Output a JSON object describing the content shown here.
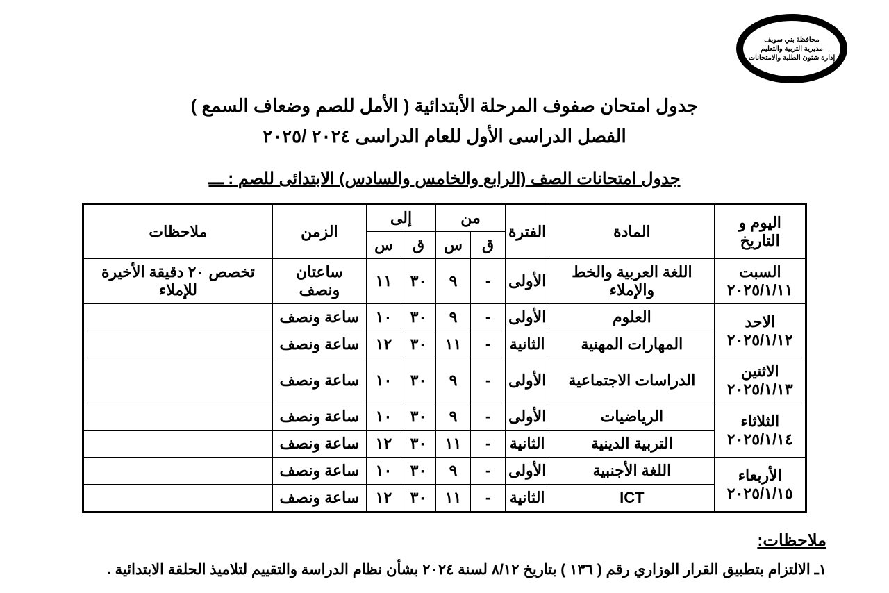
{
  "logo": {
    "line1": "محافظة بني سويف",
    "line2": "مديرية التربية والتعليم",
    "line3": "إدارة شئون الطلبة والامتحانات"
  },
  "title": {
    "line1": "جدول امتحان صفوف المرحلة الأبتدائية ( الأمل للصم وضعاف السمع )",
    "line2": "الفصل الدراسى الأول للعام الدراسى ٢٠٢٤ /٢٠٢٥"
  },
  "subtitle": "جدول امتحانات الصف (الرابع والخامس والسادس) الابتدائى للصم : ـــ",
  "columns": {
    "date": "اليوم و التاريخ",
    "subject": "المادة",
    "period": "الفترة",
    "from": "من",
    "to": "إلى",
    "q": "ق",
    "s": "س",
    "duration": "الزمن",
    "notes": "ملاحظات"
  },
  "rows": [
    {
      "group_start": true,
      "date": "السبت\n٢٠٢٥/١/١١",
      "rowspan": 1,
      "subject": "اللغة العربية والخط والإملاء",
      "period": "الأولى",
      "from_q": "-",
      "from_s": "٩",
      "to_q": "٣٠",
      "to_s": "١١",
      "duration": "ساعتان ونصف",
      "notes": "تخصص ٢٠ دقيقة الأخيرة للإملاء"
    },
    {
      "group_start": true,
      "date": "الاحد\n٢٠٢٥/١/١٢",
      "rowspan": 2,
      "subject": "العلوم",
      "period": "الأولى",
      "from_q": "-",
      "from_s": "٩",
      "to_q": "٣٠",
      "to_s": "١٠",
      "duration": "ساعة ونصف",
      "notes": ""
    },
    {
      "group_start": false,
      "subject": "المهارات المهنية",
      "period": "الثانية",
      "from_q": "-",
      "from_s": "١١",
      "to_q": "٣٠",
      "to_s": "١٢",
      "duration": "ساعة ونصف",
      "notes": ""
    },
    {
      "group_start": true,
      "date": "الاثنين\n٢٠٢٥/١/١٣",
      "rowspan": 1,
      "subject": "الدراسات الاجتماعية",
      "period": "الأولى",
      "from_q": "-",
      "from_s": "٩",
      "to_q": "٣٠",
      "to_s": "١٠",
      "duration": "ساعة ونصف",
      "notes": ""
    },
    {
      "group_start": true,
      "date": "الثلاثاء\n٢٠٢٥/١/١٤",
      "rowspan": 2,
      "subject": "الرياضيات",
      "period": "الأولى",
      "from_q": "-",
      "from_s": "٩",
      "to_q": "٣٠",
      "to_s": "١٠",
      "duration": "ساعة ونصف",
      "notes": ""
    },
    {
      "group_start": false,
      "subject": "التربية الدينية",
      "period": "الثانية",
      "from_q": "-",
      "from_s": "١١",
      "to_q": "٣٠",
      "to_s": "١٢",
      "duration": "ساعة ونصف",
      "notes": ""
    },
    {
      "group_start": true,
      "date": "الأربعاء\n٢٠٢٥/١/١٥",
      "rowspan": 2,
      "subject": "اللغة الأجنبية",
      "period": "الأولى",
      "from_q": "-",
      "from_s": "٩",
      "to_q": "٣٠",
      "to_s": "١٠",
      "duration": "ساعة ونصف",
      "notes": ""
    },
    {
      "group_start": false,
      "subject": "ICT",
      "period": "الثانية",
      "from_q": "-",
      "from_s": "١١",
      "to_q": "٣٠",
      "to_s": "١٢",
      "duration": "ساعة ونصف",
      "notes": ""
    }
  ],
  "notes_heading": "ملاحظات:",
  "notes_item1": "١ـ  الالتزام بتطبيق القرار الوزاري رقم ( ١٣٦ ) بتاريخ ٨/١٢ لسنة ٢٠٢٤ بشأن نظام الدراسة والتقييم لتلاميذ الحلقة الابتدائية ."
}
